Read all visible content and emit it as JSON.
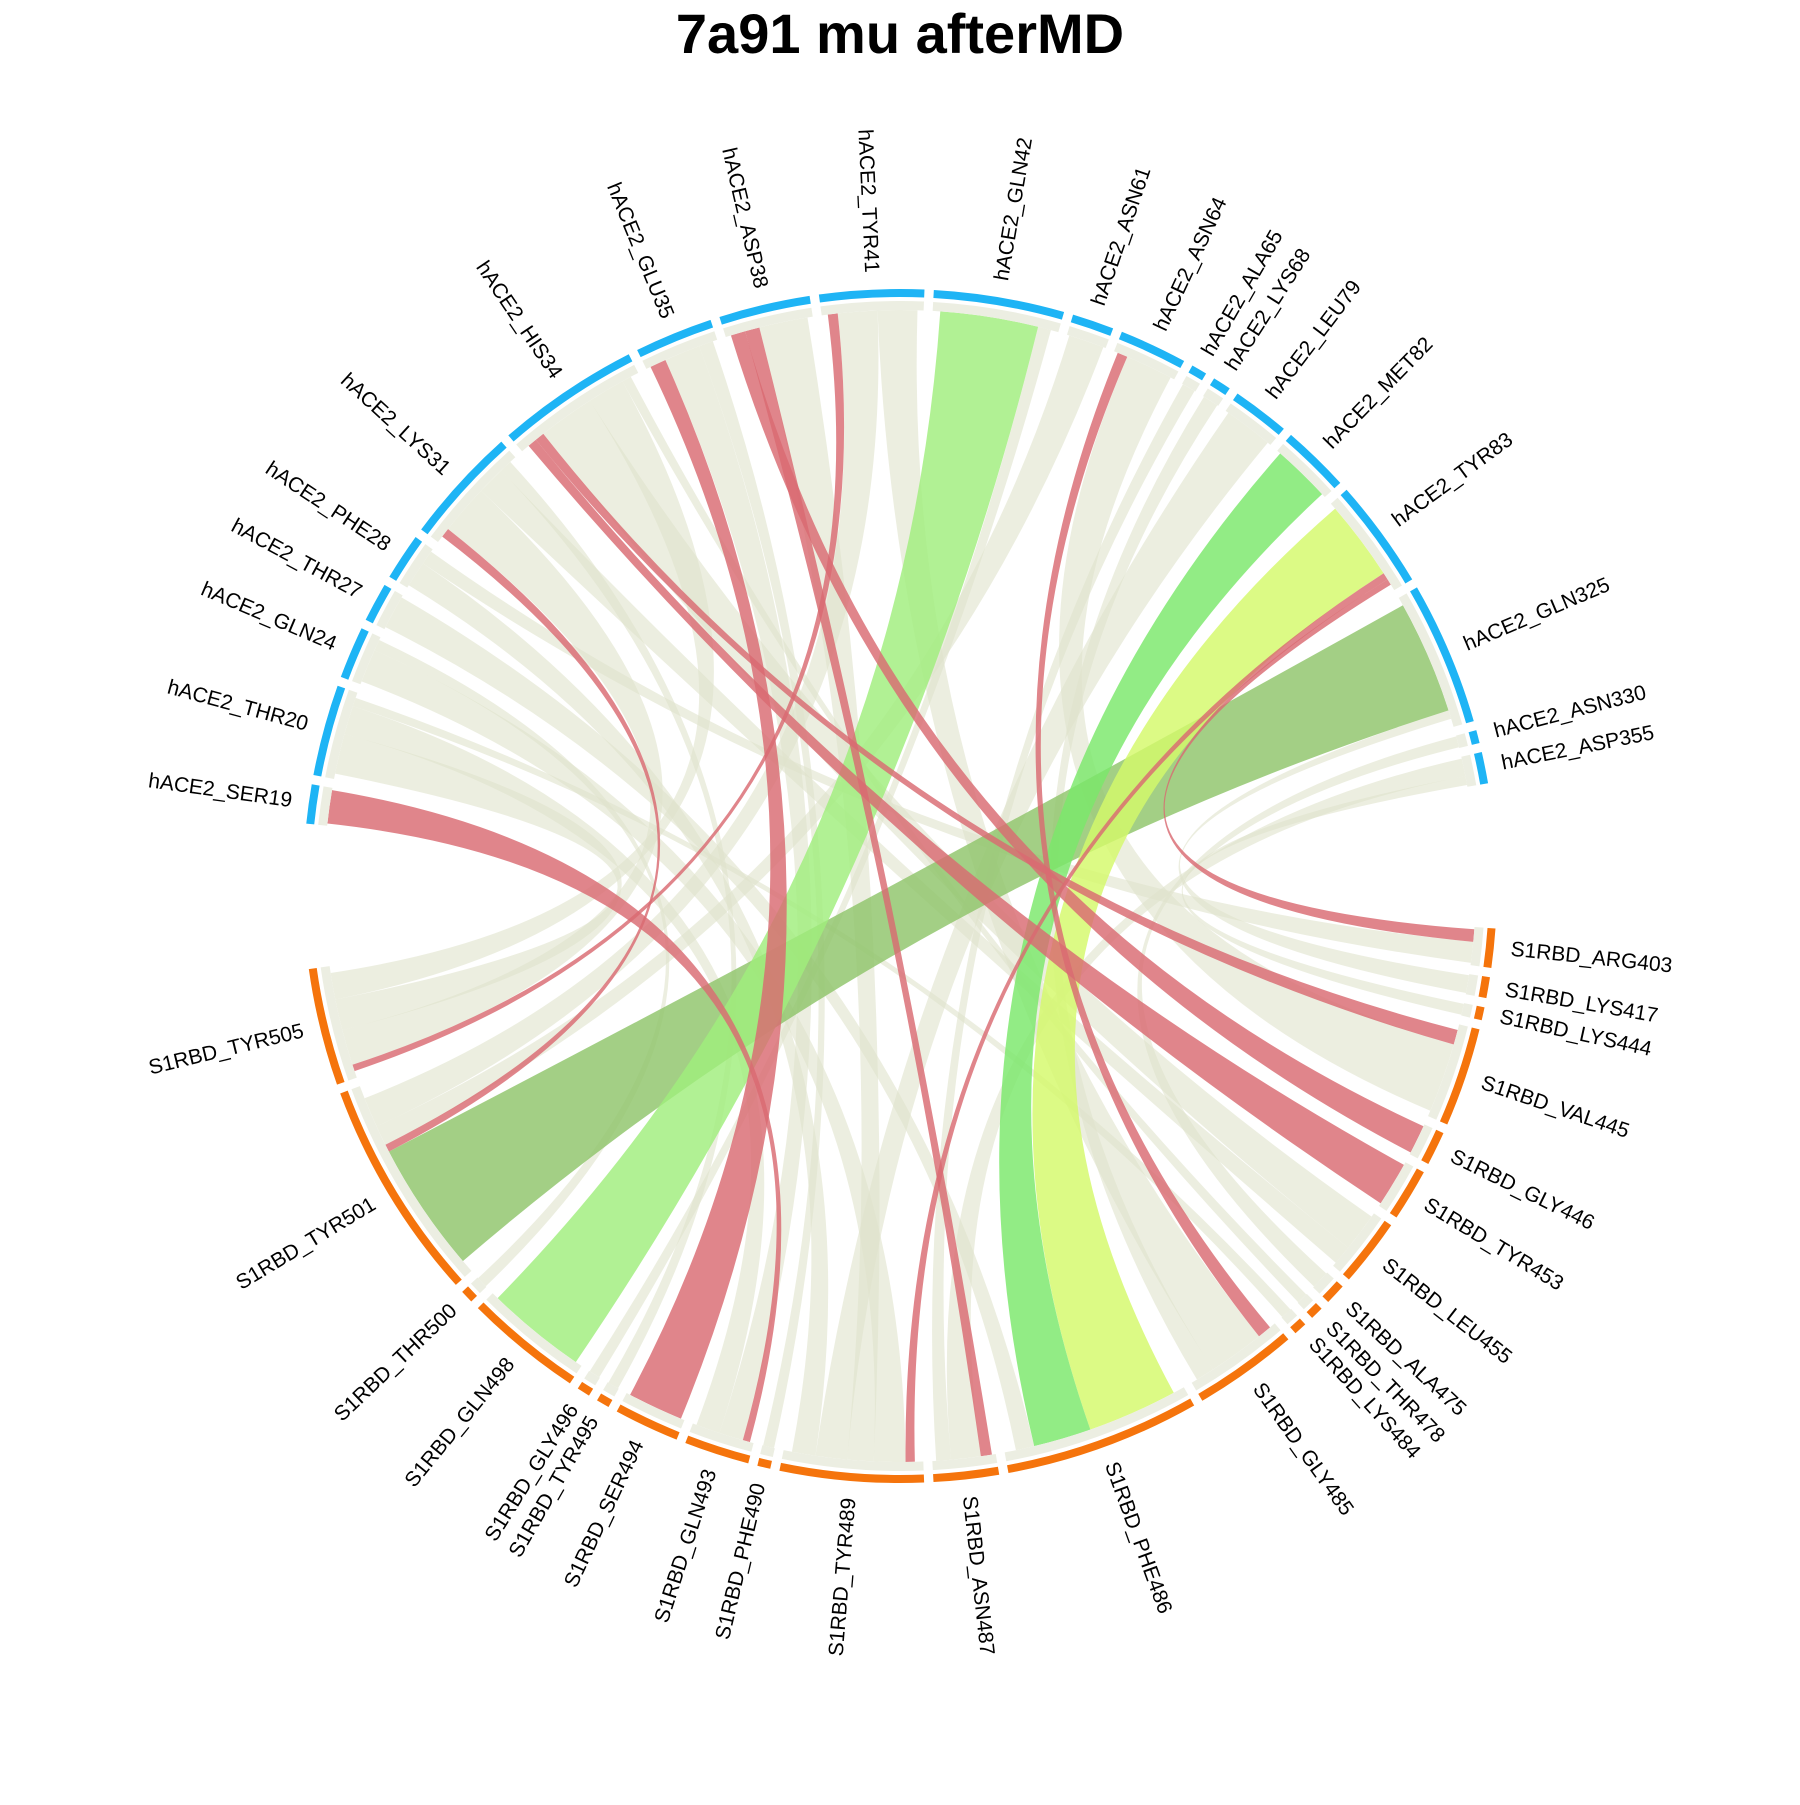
{
  "chart_data": {
    "type": "chord",
    "title": "7a91 mu afterMD",
    "groups": [
      {
        "name": "hACE2",
        "color": "#1eb4f5",
        "sectors": [
          {
            "label": "hACE2_SER19",
            "size": 1.5
          },
          {
            "label": "hACE2_THR20",
            "size": 3.5
          },
          {
            "label": "hACE2_GLN24",
            "size": 2
          },
          {
            "label": "hACE2_THR27",
            "size": 1.5
          },
          {
            "label": "hACE2_PHE28",
            "size": 1.8
          },
          {
            "label": "hACE2_LYS31",
            "size": 4.5
          },
          {
            "label": "hACE2_HIS34",
            "size": 5.5
          },
          {
            "label": "hACE2_GLU35",
            "size": 3
          },
          {
            "label": "hACE2_ASP38",
            "size": 3.5
          },
          {
            "label": "hACE2_TYR41",
            "size": 4
          },
          {
            "label": "hACE2_GLN42",
            "size": 5
          },
          {
            "label": "hACE2_ASN61",
            "size": 1.6
          },
          {
            "label": "hACE2_ASN64",
            "size": 2.6
          },
          {
            "label": "hACE2_ALA65",
            "size": 0.6
          },
          {
            "label": "hACE2_LYS68",
            "size": 0.7
          },
          {
            "label": "hACE2_LEU79",
            "size": 2.2
          },
          {
            "label": "hACE2_MET82",
            "size": 2.6
          },
          {
            "label": "hACE2_TYR83",
            "size": 4.2
          },
          {
            "label": "hACE2_GLN325",
            "size": 5.5
          },
          {
            "label": "hACE2_ASN330",
            "size": 0.5
          },
          {
            "label": "hACE2_ASP355",
            "size": 1.2
          }
        ]
      },
      {
        "name": "S1RBD",
        "color": "#f5740c",
        "sectors": [
          {
            "label": "S1RBD_ARG403",
            "size": 1.5
          },
          {
            "label": "S1RBD_LYS417",
            "size": 0.8
          },
          {
            "label": "S1RBD_LYS444",
            "size": 0.5
          },
          {
            "label": "S1RBD_VAL445",
            "size": 3.8
          },
          {
            "label": "S1RBD_GLY446",
            "size": 1.3
          },
          {
            "label": "S1RBD_TYR453",
            "size": 2
          },
          {
            "label": "S1RBD_LEU455",
            "size": 2.6
          },
          {
            "label": "S1RBD_ALA475",
            "size": 0.8
          },
          {
            "label": "S1RBD_THR478",
            "size": 0.5
          },
          {
            "label": "S1RBD_LYS484",
            "size": 0.5
          },
          {
            "label": "S1RBD_GLY485",
            "size": 4
          },
          {
            "label": "S1RBD_PHE486",
            "size": 7.5
          },
          {
            "label": "S1RBD_ASN487",
            "size": 2.5
          },
          {
            "label": "S1RBD_TYR489",
            "size": 5.5
          },
          {
            "label": "S1RBD_PHE490",
            "size": 0.5
          },
          {
            "label": "S1RBD_GLN493",
            "size": 2.5
          },
          {
            "label": "S1RBD_SER494",
            "size": 2.5
          },
          {
            "label": "S1RBD_TYR495",
            "size": 0.5
          },
          {
            "label": "S1RBD_GLY496",
            "size": 0.5
          },
          {
            "label": "S1RBD_GLN498",
            "size": 4.5
          },
          {
            "label": "S1RBD_THR500",
            "size": 0.5
          },
          {
            "label": "S1RBD_TYR501",
            "size": 8.5
          },
          {
            "label": "S1RBD_TYR505",
            "size": 4.5
          }
        ]
      }
    ],
    "links": [
      {
        "source": "hACE2_GLN325",
        "target": "S1RBD_TYR501",
        "weight": 5.2,
        "color": "#8fc46a"
      },
      {
        "source": "hACE2_TYR83",
        "target": "S1RBD_PHE486",
        "weight": 3.9,
        "color": "#d4f96a"
      },
      {
        "source": "hACE2_MET82",
        "target": "S1RBD_PHE486",
        "weight": 2.5,
        "color": "#7ae86a"
      },
      {
        "source": "hACE2_GLN42",
        "target": "S1RBD_GLN498",
        "weight": 3.0,
        "color": "#a0ee7c"
      },
      {
        "source": "hACE2_TYR83",
        "target": "S1RBD_TYR489",
        "weight": 0.35,
        "color": "#d96a72"
      },
      {
        "source": "hACE2_ASP38",
        "target": "S1RBD_GLY446",
        "weight": 0.3,
        "color": "#d96a72"
      },
      {
        "source": "hACE2_GLU35",
        "target": "S1RBD_SER494",
        "weight": 0.45,
        "color": "#d96a72"
      },
      {
        "source": "hACE2_HIS34",
        "target": "S1RBD_TYR453",
        "weight": 0.3,
        "color": "#d96a72"
      },
      {
        "source": "hACE2_SER19",
        "target": "S1RBD_GLN493",
        "weight": 0.3,
        "color": "#d96a72"
      },
      {
        "source": "hACE2_TYR41",
        "target": "S1RBD_TYR505",
        "weight": 0.3,
        "color": "#d96a72"
      },
      {
        "source": "hACE2_ASN64",
        "target": "S1RBD_GLY485",
        "weight": 0.3,
        "color": "#d96a72"
      },
      {
        "source": "hACE2_TYR83",
        "target": "S1RBD_ARG403",
        "weight": 0.3,
        "color": "#d96a72"
      },
      {
        "source": "hACE2_ASP38",
        "target": "S1RBD_ASN487",
        "weight": 0.3,
        "color": "#d96a72"
      },
      {
        "source": "hACE2_LYS31",
        "target": "S1RBD_TYR501",
        "weight": 0.3,
        "color": "#d96a72"
      },
      {
        "source": "hACE2_HIS34",
        "target": "S1RBD_VAL445",
        "weight": 0.3,
        "color": "#d96a72"
      },
      {
        "source": "hACE2_LYS31",
        "target": "S1RBD_TYR505",
        "weight": 1.6,
        "color": "#dfe3cc"
      },
      {
        "source": "hACE2_HIS34",
        "target": "S1RBD_LEU455",
        "weight": 1.8,
        "color": "#dfe3cc"
      },
      {
        "source": "hACE2_THR20",
        "target": "S1RBD_TYR505",
        "weight": 1.4,
        "color": "#dfe3cc"
      },
      {
        "source": "hACE2_GLN24",
        "target": "S1RBD_TYR489",
        "weight": 1.2,
        "color": "#dfe3cc"
      },
      {
        "source": "hACE2_ASN61",
        "target": "S1RBD_TYR501",
        "weight": 0.8,
        "color": "#dfe3cc"
      },
      {
        "source": "hACE2_TYR41",
        "target": "S1RBD_TYR501",
        "weight": 1.2,
        "color": "#dfe3cc"
      },
      {
        "source": "hACE2_ASP38",
        "target": "S1RBD_TYR489",
        "weight": 1.0,
        "color": "#dfe3cc"
      },
      {
        "source": "hACE2_GLU35",
        "target": "S1RBD_GLN493",
        "weight": 1.0,
        "color": "#dfe3cc"
      },
      {
        "source": "hACE2_ASP355",
        "target": "S1RBD_ASN487",
        "weight": 0.8,
        "color": "#dfe3cc"
      },
      {
        "source": "hACE2_LEU79",
        "target": "S1RBD_TYR489",
        "weight": 1.2,
        "color": "#dfe3cc"
      },
      {
        "source": "hACE2_ASN64",
        "target": "S1RBD_VAL445",
        "weight": 1.4,
        "color": "#dfe3cc"
      },
      {
        "source": "hACE2_TYR41",
        "target": "S1RBD_GLY485",
        "weight": 1.2,
        "color": "#dfe3cc"
      },
      {
        "source": "hACE2_LYS31",
        "target": "S1RBD_LEU455",
        "weight": 0.9,
        "color": "#dfe3cc"
      },
      {
        "source": "hACE2_PHE28",
        "target": "S1RBD_TYR489",
        "weight": 0.9,
        "color": "#dfe3cc"
      },
      {
        "source": "hACE2_THR27",
        "target": "S1RBD_PHE486",
        "weight": 0.8,
        "color": "#dfe3cc"
      },
      {
        "source": "hACE2_HIS34",
        "target": "S1RBD_TYR505",
        "weight": 1.2,
        "color": "#dfe3cc"
      },
      {
        "source": "hACE2_ALA65",
        "target": "S1RBD_ASN487",
        "weight": 0.4,
        "color": "#dfe3cc"
      },
      {
        "source": "hACE2_LYS68",
        "target": "S1RBD_GLY485",
        "weight": 0.4,
        "color": "#dfe3cc"
      },
      {
        "source": "hACE2_THR20",
        "target": "S1RBD_GLN493",
        "weight": 1.0,
        "color": "#dfe3cc"
      },
      {
        "source": "hACE2_ASN330",
        "target": "S1RBD_ALA475",
        "weight": 0.3,
        "color": "#dfe3cc"
      },
      {
        "source": "hACE2_GLN325",
        "target": "S1RBD_LYS417",
        "weight": 0.4,
        "color": "#dfe3cc"
      },
      {
        "source": "hACE2_ASP355",
        "target": "S1RBD_LYS444",
        "weight": 0.4,
        "color": "#dfe3cc"
      },
      {
        "source": "hACE2_GLN42",
        "target": "S1RBD_GLY496",
        "weight": 0.4,
        "color": "#dfe3cc"
      },
      {
        "source": "hACE2_LYS31",
        "target": "S1RBD_TYR495",
        "weight": 0.4,
        "color": "#dfe3cc"
      },
      {
        "source": "hACE2_GLN24",
        "target": "S1RBD_THR500",
        "weight": 0.4,
        "color": "#dfe3cc"
      },
      {
        "source": "hACE2_GLU35",
        "target": "S1RBD_PHE490",
        "weight": 0.4,
        "color": "#dfe3cc"
      },
      {
        "source": "hACE2_HIS34",
        "target": "S1RBD_THR478",
        "weight": 0.3,
        "color": "#dfe3cc"
      },
      {
        "source": "hACE2_THR20",
        "target": "S1RBD_LYS484",
        "weight": 0.3,
        "color": "#dfe3cc"
      },
      {
        "source": "hACE2_PHE28",
        "target": "S1RBD_ARG403",
        "weight": 0.5,
        "color": "#dfe3cc"
      }
    ]
  }
}
